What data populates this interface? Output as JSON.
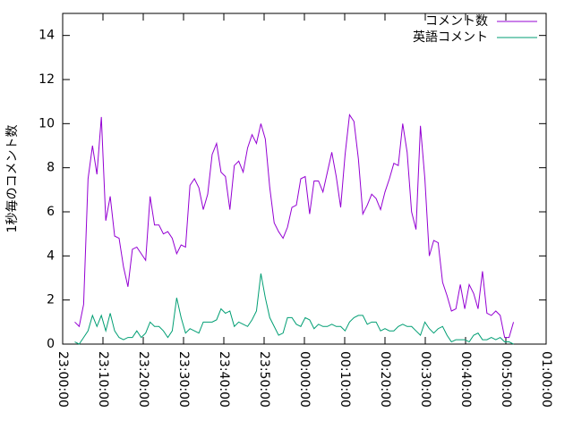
{
  "chart_data": {
    "type": "line",
    "ylabel": "1秒毎のコメント数",
    "x": [
      3,
      4.1,
      5.2,
      6.3,
      7.4,
      8.5,
      9.6,
      10.7,
      11.8,
      12.9,
      14,
      15.1,
      16.2,
      17.3,
      18.4,
      19.5,
      20.6,
      21.7,
      22.8,
      23.9,
      25,
      26.1,
      27.2,
      28.3,
      29.4,
      30.5,
      31.6,
      32.7,
      33.8,
      34.9,
      36,
      37.1,
      38.2,
      39.3,
      40.4,
      41.5,
      42.6,
      43.7,
      44.8,
      45.9,
      47,
      48.1,
      49.2,
      50.3,
      51.4,
      52.5,
      53.6,
      54.7,
      55.8,
      56.9,
      58,
      59.1,
      60.2,
      61.3,
      62.4,
      63.5,
      64.6,
      65.7,
      66.8,
      67.9,
      69,
      70.1,
      71.2,
      72.3,
      73.4,
      74.5,
      75.6,
      76.7,
      77.8,
      78.9,
      80,
      81.1,
      82.2,
      83.3,
      84.4,
      85.5,
      86.6,
      87.7,
      88.8,
      89.9,
      91,
      92.1,
      93.2,
      94.3,
      95.4,
      96.5,
      97.6,
      98.7,
      99.8,
      100.9,
      102,
      103.1,
      104.2,
      105.3,
      106.4,
      107.5,
      108.6,
      109.7,
      110.8,
      111.9
    ],
    "series": [
      {
        "name": "コメント数",
        "color": "#9400d3",
        "values": [
          1.0,
          0.8,
          1.8,
          7.5,
          9.0,
          7.7,
          10.3,
          5.6,
          6.7,
          4.9,
          4.8,
          3.5,
          2.6,
          4.3,
          4.4,
          4.1,
          3.8,
          6.7,
          5.4,
          5.4,
          5.0,
          5.1,
          4.8,
          4.1,
          4.5,
          4.4,
          7.2,
          7.5,
          7.1,
          6.1,
          6.8,
          8.6,
          9.1,
          7.8,
          7.6,
          6.1,
          8.1,
          8.3,
          7.8,
          8.9,
          9.5,
          9.1,
          10.0,
          9.3,
          7.1,
          5.5,
          5.1,
          4.8,
          5.3,
          6.2,
          6.3,
          7.5,
          7.6,
          5.9,
          7.4,
          7.4,
          6.9,
          7.8,
          8.7,
          7.6,
          6.2,
          8.6,
          10.4,
          10.1,
          8.4,
          5.9,
          6.3,
          6.8,
          6.6,
          6.1,
          6.9,
          7.5,
          8.2,
          8.1,
          10.0,
          8.7,
          6.0,
          5.2,
          9.9,
          7.5,
          4.0,
          4.7,
          4.6,
          2.8,
          2.2,
          1.5,
          1.6,
          2.7,
          1.6,
          2.7,
          2.3,
          1.6,
          3.3,
          1.4,
          1.3,
          1.5,
          1.3,
          0.3,
          0.3,
          1.0
        ]
      },
      {
        "name": "英語コメント",
        "color": "#009e73",
        "values": [
          0.1,
          0.0,
          0.3,
          0.6,
          1.3,
          0.8,
          1.3,
          0.6,
          1.4,
          0.6,
          0.3,
          0.2,
          0.3,
          0.3,
          0.6,
          0.3,
          0.5,
          1.0,
          0.8,
          0.8,
          0.6,
          0.3,
          0.6,
          2.1,
          1.2,
          0.5,
          0.7,
          0.6,
          0.5,
          1.0,
          1.0,
          1.0,
          1.1,
          1.6,
          1.4,
          1.5,
          0.8,
          1.0,
          0.9,
          0.8,
          1.1,
          1.5,
          3.2,
          2.1,
          1.2,
          0.8,
          0.4,
          0.5,
          1.2,
          1.2,
          0.9,
          0.8,
          1.2,
          1.1,
          0.7,
          0.9,
          0.8,
          0.8,
          0.9,
          0.8,
          0.8,
          0.6,
          1.0,
          1.2,
          1.3,
          1.3,
          0.9,
          1.0,
          1.0,
          0.6,
          0.7,
          0.6,
          0.6,
          0.8,
          0.9,
          0.8,
          0.8,
          0.6,
          0.4,
          1.0,
          0.7,
          0.5,
          0.7,
          0.8,
          0.4,
          0.1,
          0.2,
          0.2,
          0.2,
          0.1,
          0.4,
          0.5,
          0.2,
          0.2,
          0.3,
          0.2,
          0.3,
          0.1,
          0.1,
          0.0
        ]
      }
    ],
    "xlim": [
      0,
      120
    ],
    "xticks": [
      {
        "value": 0,
        "label": "23:00:00"
      },
      {
        "value": 10,
        "label": "23:10:00"
      },
      {
        "value": 20,
        "label": "23:20:00"
      },
      {
        "value": 30,
        "label": "23:30:00"
      },
      {
        "value": 40,
        "label": "23:40:00"
      },
      {
        "value": 50,
        "label": "23:50:00"
      },
      {
        "value": 60,
        "label": "00:00:00"
      },
      {
        "value": 70,
        "label": "00:10:00"
      },
      {
        "value": 80,
        "label": "00:20:00"
      },
      {
        "value": 90,
        "label": "00:30:00"
      },
      {
        "value": 100,
        "label": "00:40:00"
      },
      {
        "value": 110,
        "label": "00:50:00"
      },
      {
        "value": 120,
        "label": "01:00:00"
      }
    ],
    "ylim": [
      0,
      15
    ],
    "yticks": [
      0,
      2,
      4,
      6,
      8,
      10,
      12,
      14
    ],
    "legend": "top-right"
  }
}
